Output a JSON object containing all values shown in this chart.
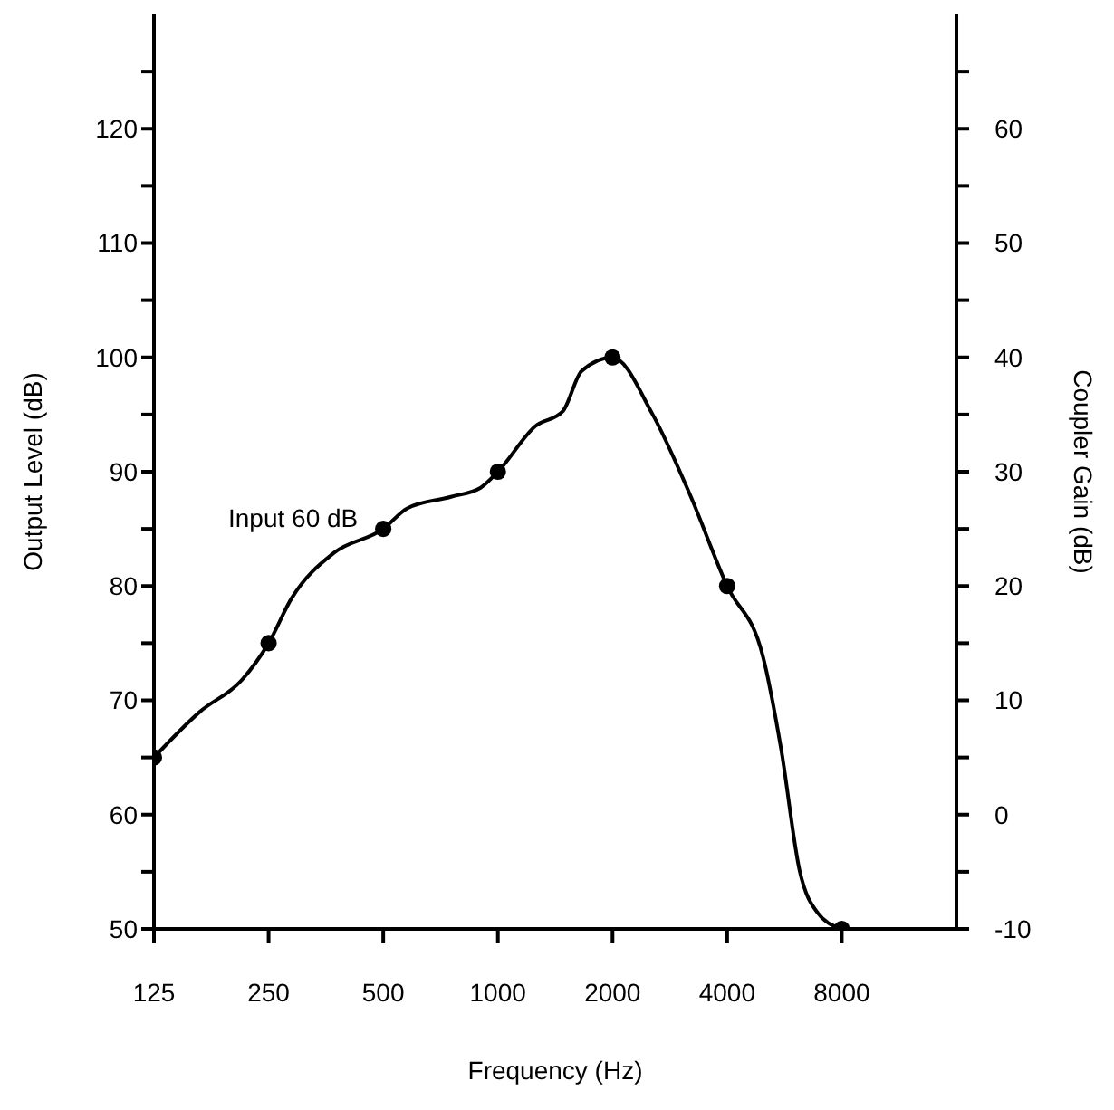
{
  "chart_data": {
    "type": "line",
    "xlabel": "Frequency (Hz)",
    "ylabel": "Output Level (dB)",
    "y2label": "Coupler Gain (dB)",
    "annotations": [
      "Input 60 dB"
    ],
    "log": "x",
    "xlim": [
      125,
      16000
    ],
    "xticks": [
      125,
      250,
      500,
      1000,
      2000,
      4000,
      8000
    ],
    "ylim": [
      50,
      130
    ],
    "yticks": [
      50,
      {
        "value": 55,
        "label": null
      },
      60,
      {
        "value": 65,
        "label": null
      },
      70,
      {
        "value": 75,
        "label": null
      },
      80,
      {
        "value": 85,
        "label": null
      },
      90,
      {
        "value": 95,
        "label": null
      },
      100,
      {
        "value": 105,
        "label": null
      },
      110,
      {
        "value": 115,
        "label": null
      },
      120,
      {
        "value": 125,
        "label": null
      }
    ],
    "y2lim": [
      -10,
      70
    ],
    "y2ticks": [
      -10,
      {
        "value": -5,
        "label": null
      },
      0,
      {
        "value": 5,
        "label": null
      },
      10,
      {
        "value": 15,
        "label": null
      },
      20,
      {
        "value": 25,
        "label": null
      },
      30,
      {
        "value": 35,
        "label": null
      },
      40,
      {
        "value": 45,
        "label": null
      },
      50,
      {
        "value": 55,
        "label": null
      },
      60,
      {
        "value": 65,
        "label": null
      }
    ],
    "series": [
      {
        "type": "line",
        "color": "#000000",
        "marker": "none",
        "x": [
          125,
          165,
          213,
          250,
          287,
          371,
          500,
          578,
          753,
          901,
          1000,
          1256,
          1482,
          1658,
          2000,
          2550,
          3185,
          4000,
          4970,
          5540,
          6200,
          6920,
          8000
        ],
        "values": [
          65,
          69,
          71.8,
          75,
          78.9,
          82.9,
          85,
          86.8,
          87.8,
          88.6,
          90,
          94,
          95.3,
          98.8,
          100,
          95,
          88.1,
          80,
          73.8,
          65.8,
          55.1,
          51.4,
          50
        ]
      },
      {
        "type": "scatter",
        "color": "#000000",
        "marker": "circle",
        "x": [
          125,
          250,
          500,
          1000,
          2000,
          4000,
          8000
        ],
        "values": [
          65,
          75,
          85,
          90,
          100,
          80,
          50
        ]
      }
    ]
  }
}
